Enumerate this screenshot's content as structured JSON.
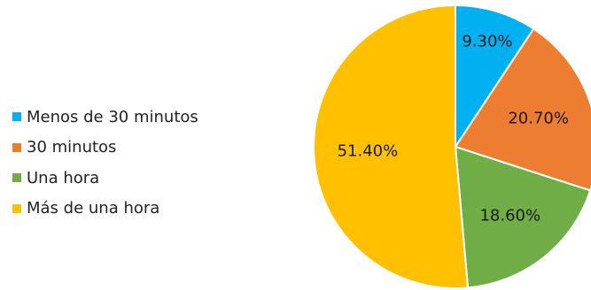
{
  "chart_data": {
    "type": "pie",
    "title": "",
    "slices": [
      {
        "label": "Menos de 30 minutos",
        "value": 9.3,
        "value_label": "9.30%",
        "color": "#00B0F0"
      },
      {
        "label": "30 minutos",
        "value": 20.7,
        "value_label": "20.70%",
        "color": "#ED7D31"
      },
      {
        "label": "Una hora",
        "value": 18.6,
        "value_label": "18.60%",
        "color": "#70AD47"
      },
      {
        "label": "Más de una hora",
        "value": 51.4,
        "value_label": "51.40%",
        "color": "#FFC000"
      }
    ],
    "legend_position": "left",
    "start_angle": "top, clockwise"
  }
}
